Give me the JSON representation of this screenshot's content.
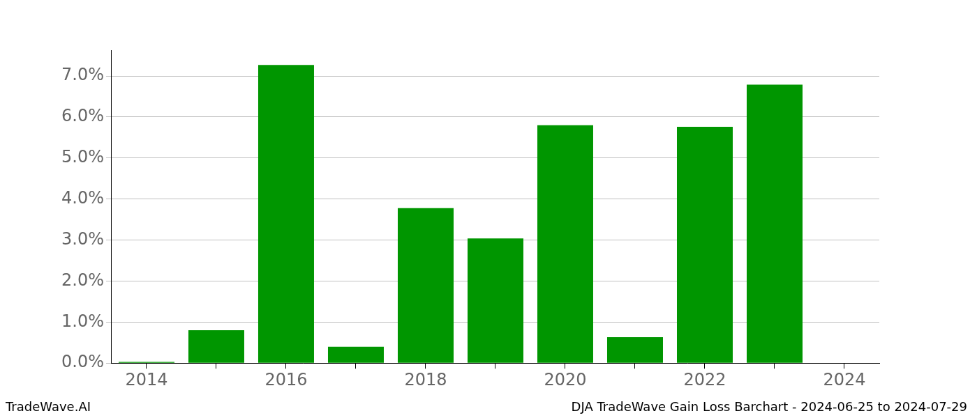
{
  "chart_data": {
    "type": "bar",
    "categories": [
      "2014",
      null,
      "2016",
      null,
      "2018",
      null,
      "2020",
      null,
      "2022",
      null,
      "2024"
    ],
    "values": [
      0.03,
      0.8,
      7.27,
      0.4,
      3.78,
      3.04,
      5.8,
      0.63,
      5.76,
      6.79,
      0
    ],
    "color": "#009600",
    "ylim": [
      0,
      7.63
    ],
    "yticks": [
      {
        "value": 0,
        "label": "0.0%"
      },
      {
        "value": 1,
        "label": "1.0%"
      },
      {
        "value": 2,
        "label": "2.0%"
      },
      {
        "value": 3,
        "label": "3.0%"
      },
      {
        "value": 4,
        "label": "4.0%"
      },
      {
        "value": 5,
        "label": "5.0%"
      },
      {
        "value": 6,
        "label": "6.0%"
      },
      {
        "value": 7,
        "label": "7.0%"
      }
    ],
    "grid": true,
    "annotations": [
      "TradeWave.AI",
      "DJA TradeWave Gain Loss Barchart - 2024-06-25 to 2024-07-29"
    ]
  }
}
